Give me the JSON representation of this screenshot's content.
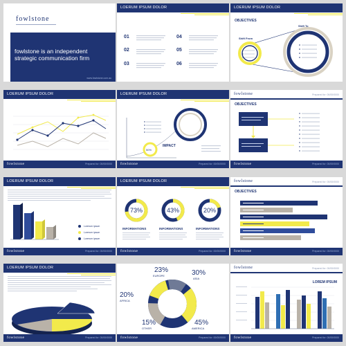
{
  "cover": {
    "brand": "fowlstone",
    "tagline": "fowlstone is an independent strategic communication firm",
    "website": "www.fowlstone.com.au"
  },
  "common": {
    "header_title": "LOERUM IPSUM DOLOR",
    "objectives": "OBJECTIVES",
    "footer_logo": "fowlstone",
    "prepared": "Prepared for: 00/00/0000"
  },
  "numbered": [
    {
      "num": "01"
    },
    {
      "num": "02"
    },
    {
      "num": "03"
    },
    {
      "num": "04"
    },
    {
      "num": "05"
    },
    {
      "num": "06"
    }
  ],
  "shift": {
    "from": "Shift From",
    "to": "Shift To"
  },
  "impact": {
    "label": "IMPACT",
    "value": "50%"
  },
  "infographics": [
    {
      "pct": "73%",
      "title": "INFORMATIONS"
    },
    {
      "pct": "43%",
      "title": "INFORMATIONS"
    },
    {
      "pct": "20%",
      "title": "INFORMATIONS"
    }
  ],
  "bar3d_legend": [
    "Lorerum ipsum",
    "Lorerum ipsum",
    "Lorerum ipsum"
  ],
  "donut": [
    {
      "pct": "23%",
      "region": "EUROPE"
    },
    {
      "pct": "30%",
      "region": "ASIA"
    },
    {
      "pct": "20%",
      "region": "AFRICA"
    },
    {
      "pct": "15%",
      "region": "OTHER"
    },
    {
      "pct": "45%",
      "region": "AMERICA"
    }
  ],
  "lorem_title": "LOREM IPSUM",
  "colors": {
    "navy": "#1f3473",
    "yellow": "#f2ea4b",
    "gray": "#b9b2a8"
  }
}
